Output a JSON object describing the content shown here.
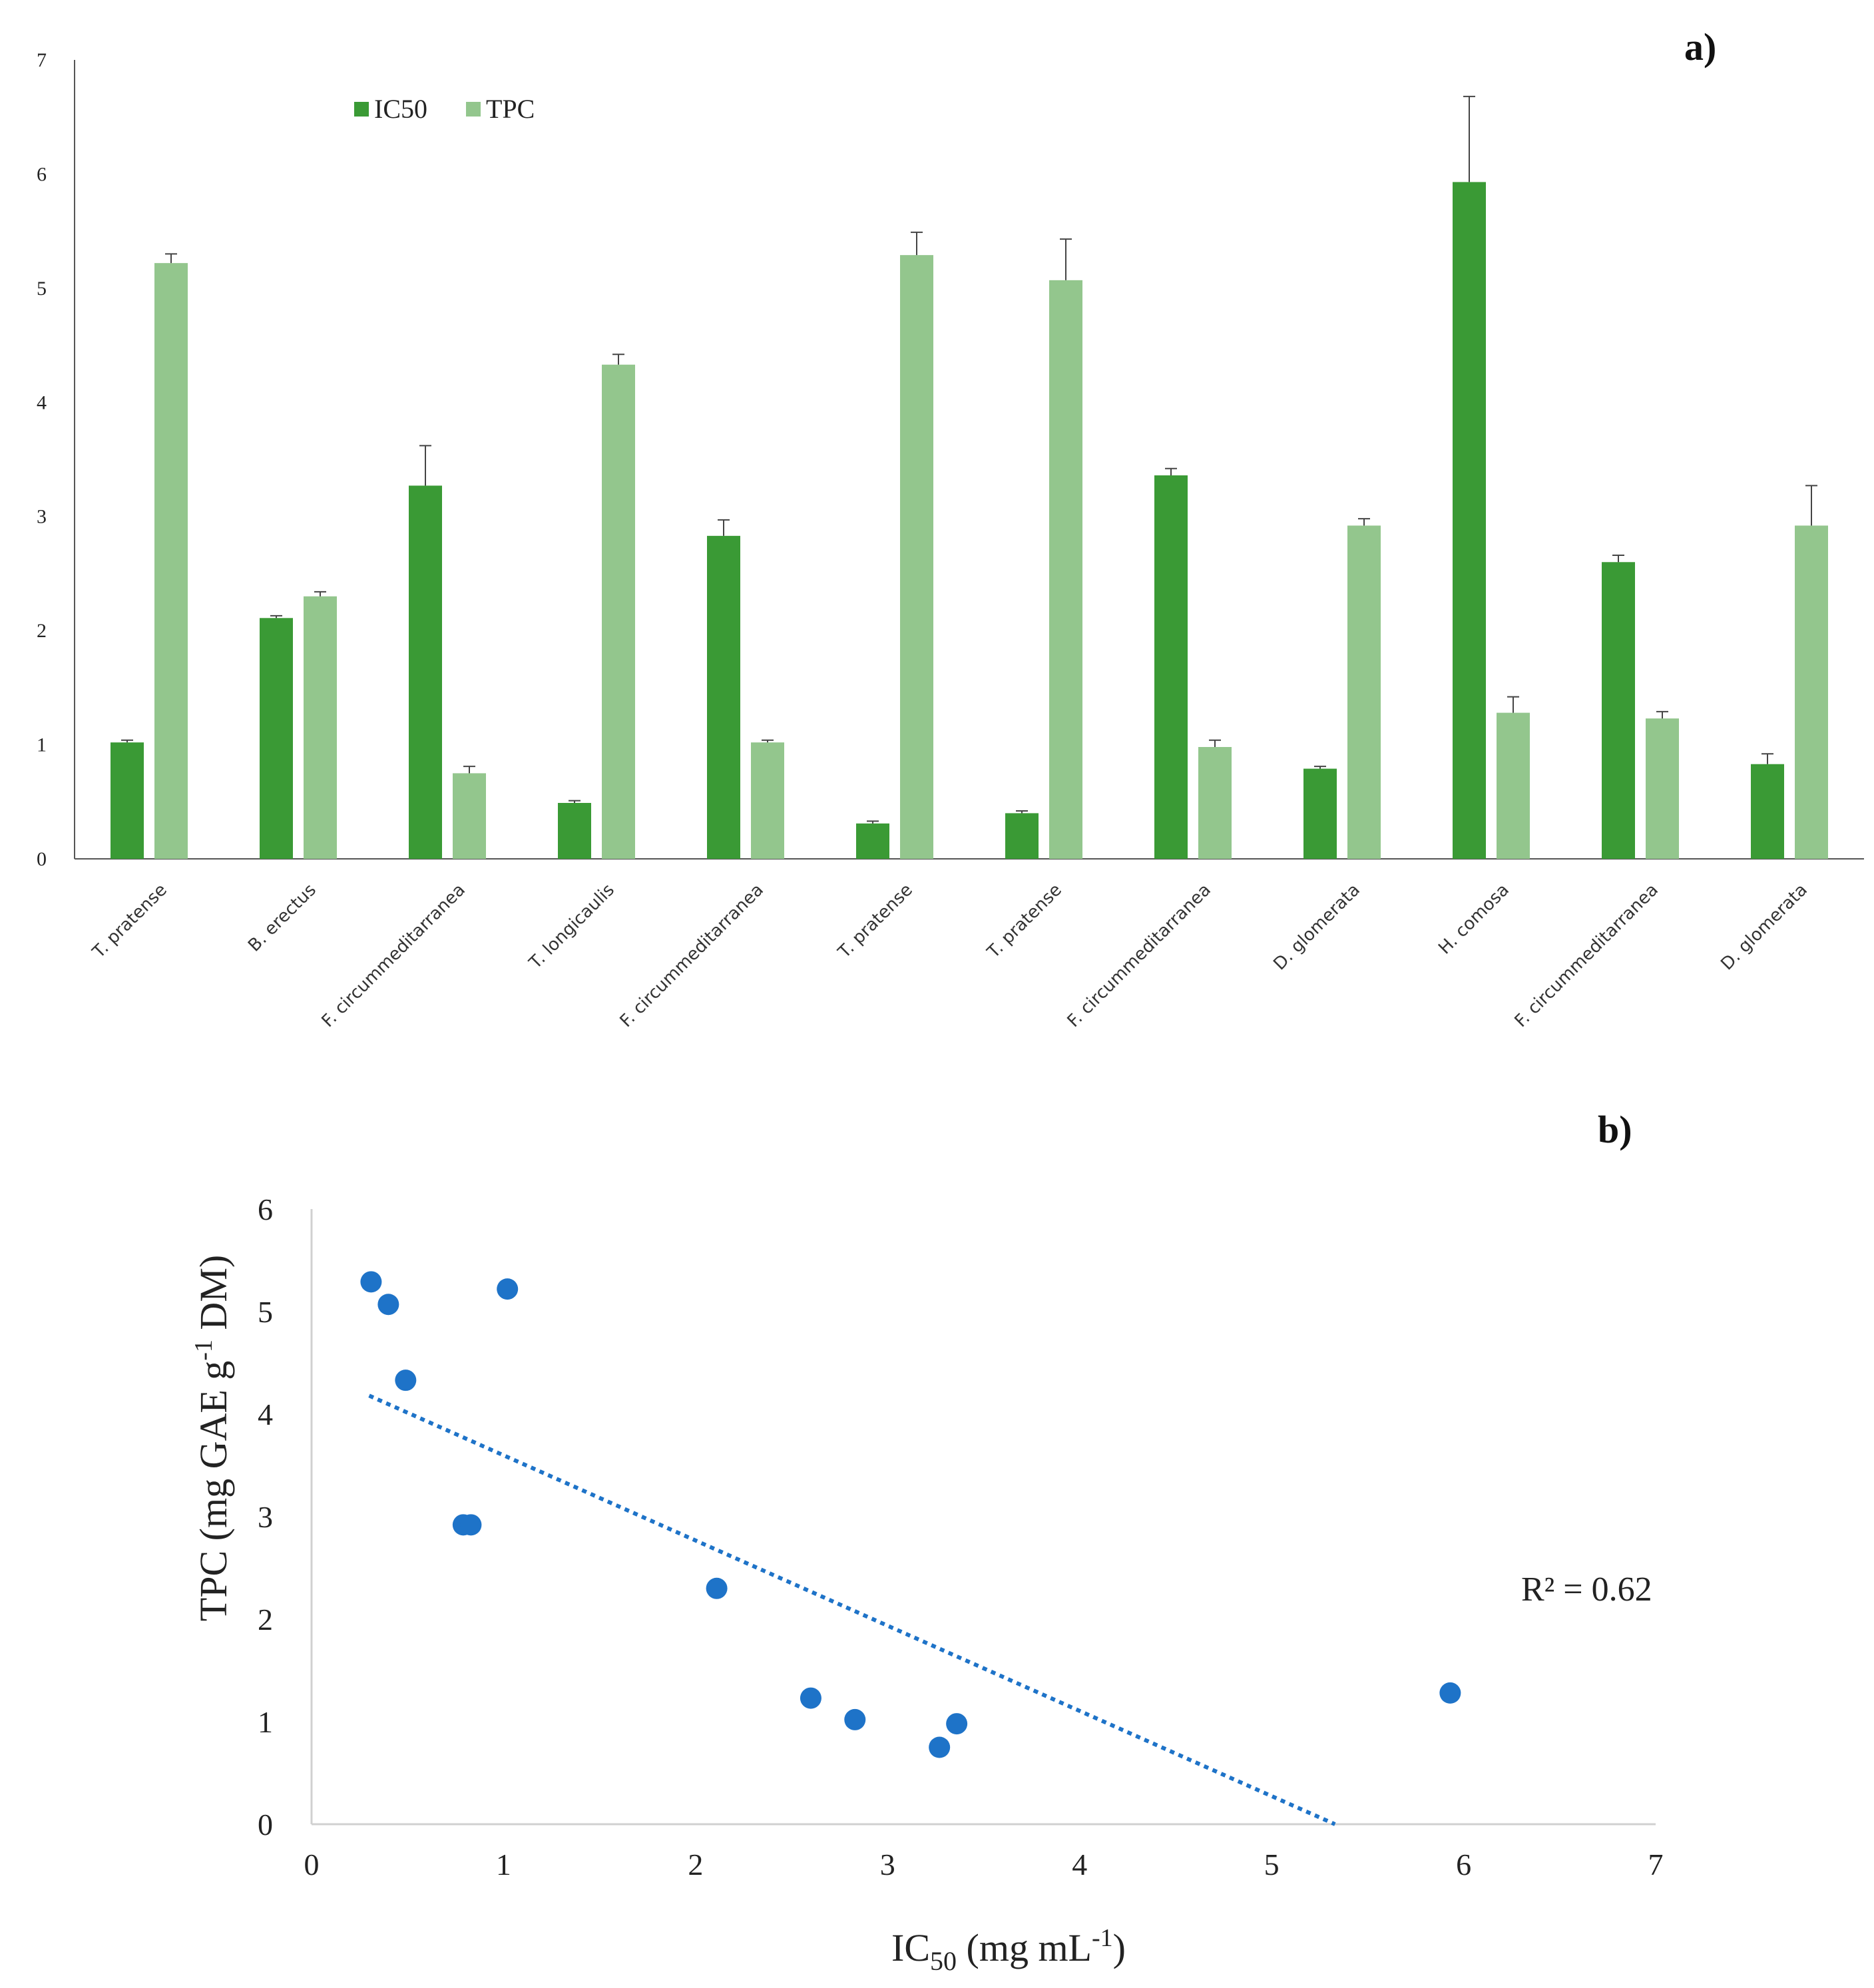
{
  "chart_data": [
    {
      "type": "bar",
      "panel_label": "a)",
      "categories": [
        "T. pratense",
        "B. erectus",
        "F. circummeditarranea",
        "T. longicaulis",
        "F. circummeditarranea",
        "T. pratense",
        "T. pratense",
        "F. circummeditarranea",
        "D. glomerata",
        "H. comosa",
        "F. circummeditarranea",
        "D. glomerata"
      ],
      "series": [
        {
          "name": "IC50",
          "color": "#3a9a35",
          "values": [
            1.02,
            2.11,
            3.27,
            0.49,
            2.83,
            0.31,
            0.4,
            3.36,
            0.79,
            5.93,
            2.6,
            0.83
          ],
          "errors": [
            0.02,
            0.02,
            0.35,
            0.02,
            0.14,
            0.02,
            0.02,
            0.06,
            0.02,
            0.75,
            0.06,
            0.09
          ]
        },
        {
          "name": "TPC",
          "color": "#93c68d",
          "values": [
            5.22,
            2.3,
            0.75,
            4.33,
            1.02,
            5.29,
            5.07,
            0.98,
            2.92,
            1.28,
            1.23,
            2.92
          ],
          "errors": [
            0.08,
            0.04,
            0.06,
            0.09,
            0.02,
            0.2,
            0.36,
            0.06,
            0.06,
            0.14,
            0.06,
            0.35
          ]
        }
      ],
      "ylim": [
        0,
        7
      ],
      "yticks": [
        "0",
        "1",
        "2",
        "3",
        "4",
        "5",
        "6",
        "7"
      ],
      "legend": "top-left",
      "grid": false
    },
    {
      "type": "scatter",
      "panel_label": "b)",
      "points": [
        {
          "x": 1.02,
          "y": 5.22
        },
        {
          "x": 2.11,
          "y": 2.3
        },
        {
          "x": 3.27,
          "y": 0.75
        },
        {
          "x": 0.49,
          "y": 4.33
        },
        {
          "x": 2.83,
          "y": 1.02
        },
        {
          "x": 0.31,
          "y": 5.29
        },
        {
          "x": 0.4,
          "y": 5.07
        },
        {
          "x": 3.36,
          "y": 0.98
        },
        {
          "x": 0.79,
          "y": 2.92
        },
        {
          "x": 5.93,
          "y": 1.28
        },
        {
          "x": 2.6,
          "y": 1.23
        },
        {
          "x": 0.83,
          "y": 2.92
        }
      ],
      "trendline": {
        "x1": 0.3,
        "y1": 4.18,
        "x2": 5.33,
        "y2": 0.0
      },
      "xlim": [
        0,
        7
      ],
      "ylim": [
        0,
        6
      ],
      "xticks": [
        "0",
        "1",
        "2",
        "3",
        "4",
        "5",
        "6",
        "7"
      ],
      "yticks": [
        "0",
        "1",
        "2",
        "3",
        "4",
        "5",
        "6"
      ],
      "xlabel_main": "IC",
      "xlabel_sub": "50",
      "xlabel_rest": " (mg mL",
      "xlabel_sup": "-1",
      "xlabel_end": ")",
      "ylabel_main": "TPC (mg GAE g",
      "ylabel_sup": "-1",
      "ylabel_end": " DM)",
      "annotation": "R² = 0.62",
      "point_color": "#1e73c8",
      "line_color": "#1e73c8",
      "grid": false
    }
  ]
}
